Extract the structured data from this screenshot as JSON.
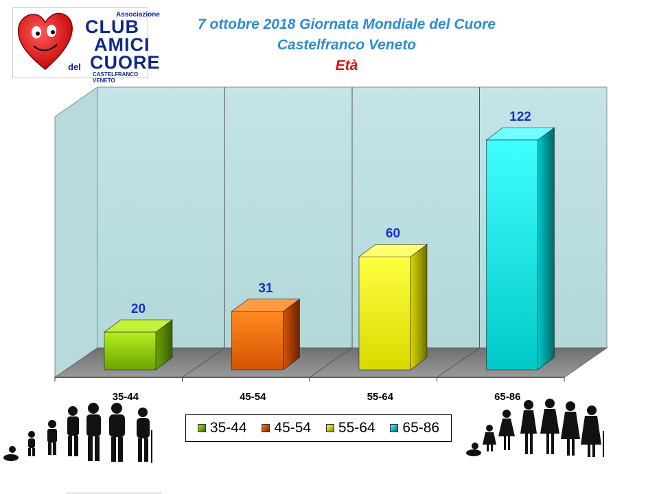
{
  "logo": {
    "line1": "Associazione",
    "line2": "CLUB",
    "line3": "AMICI",
    "line4_small": "del",
    "line4": "CUORE",
    "line5": "CASTELFRANCO VENETO"
  },
  "header": {
    "title": "7 ottobre 2018  Giornata Mondiale del Cuore",
    "subtitle": "Castelfranco Veneto",
    "chart_title": "Età"
  },
  "colors": {
    "title_blue": "#2e8bd8",
    "title_red": "#e01010",
    "label_blue": "#1a2fc8",
    "wall": "#bfe0e2",
    "floor": "#7f7f7f"
  },
  "chart_data": {
    "type": "bar",
    "title": "Età",
    "categories": [
      "35-44",
      "45-54",
      "55-64",
      "65-86"
    ],
    "values": [
      20,
      31,
      60,
      122
    ],
    "colors": [
      "#8fcf10",
      "#f06a00",
      "#ffff10",
      "#10f4f4"
    ],
    "ylim": [
      0,
      130
    ],
    "grid": false,
    "legend_position": "bottom",
    "legend": [
      "35-44",
      "45-54",
      "55-64",
      "65-86"
    ]
  }
}
